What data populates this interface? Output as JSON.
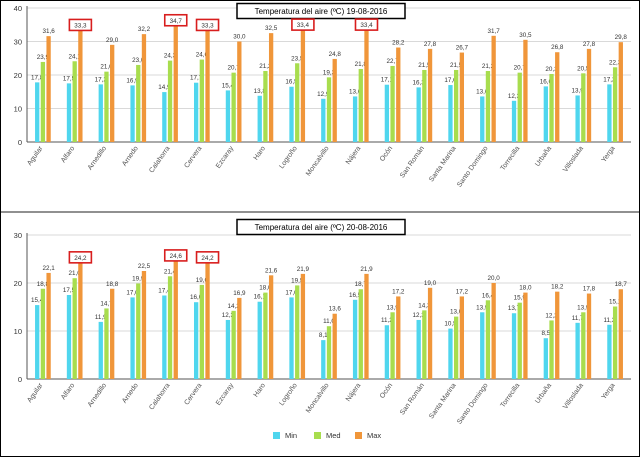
{
  "colors": {
    "min": "#4fd6ee",
    "med": "#a8dd4e",
    "max": "#f0963a",
    "highlight": "#d81e1e",
    "grid": "#d9d9d9",
    "axis": "#555555"
  },
  "legend": [
    "Min",
    "Med",
    "Max"
  ],
  "chart_data": [
    {
      "type": "bar",
      "title": "Temperatura del aire (ºC) 19-08-2016",
      "xlabel": "",
      "ylabel": "",
      "ylim": [
        0,
        40
      ],
      "yticks": [
        "0",
        "10",
        "20",
        "30",
        "40"
      ],
      "grid": true,
      "legend_position": "none",
      "categories": [
        "Aguilar",
        "Alfaro",
        "Arnedillo",
        "Arnedo",
        "Calahorra",
        "Cervera",
        "Ezcaray",
        "Haro",
        "Logroño",
        "Moncalvillo",
        "Nájera",
        "Ocón",
        "San Román",
        "Santa Marina",
        "Santo Domingo",
        "Torrecilla",
        "Urbaña",
        "Villoslada",
        "Yerga"
      ],
      "series": [
        {
          "name": "Min",
          "values": [
            17.8,
            17.5,
            17.2,
            16.9,
            14.9,
            17.7,
            15.4,
            13.8,
            16.5,
            12.9,
            13.6,
            17.1,
            16.3,
            17.0,
            13.6,
            12.3,
            16.6,
            13.9,
            17.2
          ],
          "labels": [
            "17,8",
            "17,5",
            "17,2",
            "16,9",
            "14,9",
            "17,7",
            "15,4",
            "13,8",
            "16,5",
            "12,9",
            "13,6",
            "17,1",
            "16,3",
            "17,0",
            "13,6",
            "12,3",
            "16,6",
            "13,9",
            "17,2"
          ]
        },
        {
          "name": "Med",
          "values": [
            23.9,
            24.1,
            21.0,
            23.0,
            24.3,
            24.6,
            20.7,
            21.2,
            23.5,
            19.3,
            21.8,
            22.7,
            21.5,
            21.5,
            21.2,
            20.7,
            20.3,
            20.5,
            22.3
          ],
          "labels": [
            "23,9",
            "24,1",
            "21,0",
            "23,0",
            "24,3",
            "24,6",
            "20,7",
            "21,2",
            "23,5",
            "19,3",
            "21,8",
            "22,7",
            "21,5",
            "21,5",
            "21,2",
            "20,7",
            "20,3",
            "20,5",
            "22,3"
          ]
        },
        {
          "name": "Max",
          "values": [
            31.6,
            33.3,
            29.0,
            32.2,
            34.7,
            33.3,
            30.0,
            32.5,
            33.4,
            24.8,
            33.4,
            28.2,
            27.8,
            26.7,
            31.7,
            30.5,
            26.8,
            27.8,
            29.8
          ],
          "labels": [
            "31,6",
            "33,3",
            "29,0",
            "32,2",
            "34,7",
            "33,3",
            "30,0",
            "32,5",
            "33,4",
            "24,8",
            "33,4",
            "28,2",
            "27,8",
            "26,7",
            "31,7",
            "30,5",
            "26,8",
            "27,8",
            "29,8"
          ]
        }
      ],
      "highlighted_max": [
        "Alfaro",
        "Calahorra",
        "Cervera",
        "Logroño",
        "Nájera"
      ]
    },
    {
      "type": "bar",
      "title": "Temperatura del aire (ºC) 20-08-2016",
      "xlabel": "",
      "ylabel": "",
      "ylim": [
        0,
        30
      ],
      "yticks": [
        "0",
        "10",
        "20",
        "30"
      ],
      "grid": true,
      "legend_position": "bottom",
      "categories": [
        "Aguilar",
        "Alfaro",
        "Arnedillo",
        "Arnedo",
        "Calahorra",
        "Cervera",
        "Ezcaray",
        "Haro",
        "Logroño",
        "Moncalvillo",
        "Nájera",
        "Ocón",
        "San Román",
        "Santa Marina",
        "Santo Domingo",
        "Torrecilla",
        "Urbaña",
        "Villoslada",
        "Yerga"
      ],
      "series": [
        {
          "name": "Min",
          "values": [
            15.4,
            17.5,
            11.9,
            17.0,
            17.4,
            16.0,
            12.3,
            16.1,
            17.0,
            8.1,
            16.5,
            11.2,
            12.3,
            10.5,
            13.9,
            13.7,
            8.5,
            11.7,
            11.3
          ],
          "labels": [
            "15,4",
            "17,5",
            "11,9",
            "17,0",
            "17,4",
            "16,0",
            "12,3",
            "16,1",
            "17,0",
            "8,1",
            "16,5",
            "11,2",
            "12,3",
            "10,5",
            "13,9",
            "13,7",
            "8,5",
            "11,7",
            "11,3"
          ]
        },
        {
          "name": "Med",
          "values": [
            18.8,
            21.0,
            14.7,
            19.9,
            21.4,
            19.6,
            14.2,
            18.0,
            19.5,
            11.0,
            18.7,
            13.9,
            14.3,
            13.0,
            16.4,
            15.9,
            12.2,
            13.9,
            15.1
          ],
          "labels": [
            "18,8",
            "21,0",
            "14,7",
            "19,9",
            "21,4",
            "19,6",
            "14,2",
            "18,0",
            "19,5",
            "11,0",
            "18,7",
            "13,9",
            "14,3",
            "13,0",
            "16,4",
            "15,9",
            "12,2",
            "13,9",
            "15,1"
          ]
        },
        {
          "name": "Max",
          "values": [
            22.1,
            24.2,
            18.8,
            22.5,
            24.6,
            24.2,
            16.9,
            21.6,
            21.9,
            13.6,
            21.9,
            17.2,
            19.0,
            17.2,
            20.0,
            18.0,
            18.2,
            17.8,
            18.7
          ],
          "labels": [
            "22,1",
            "24,2",
            "18,8",
            "22,5",
            "24,6",
            "24,2",
            "16,9",
            "21,6",
            "21,9",
            "13,6",
            "21,9",
            "17,2",
            "19,0",
            "17,2",
            "20,0",
            "18,0",
            "18,2",
            "17,8",
            "18,7"
          ]
        }
      ],
      "highlighted_max": [
        "Alfaro",
        "Calahorra",
        "Cervera"
      ]
    }
  ]
}
